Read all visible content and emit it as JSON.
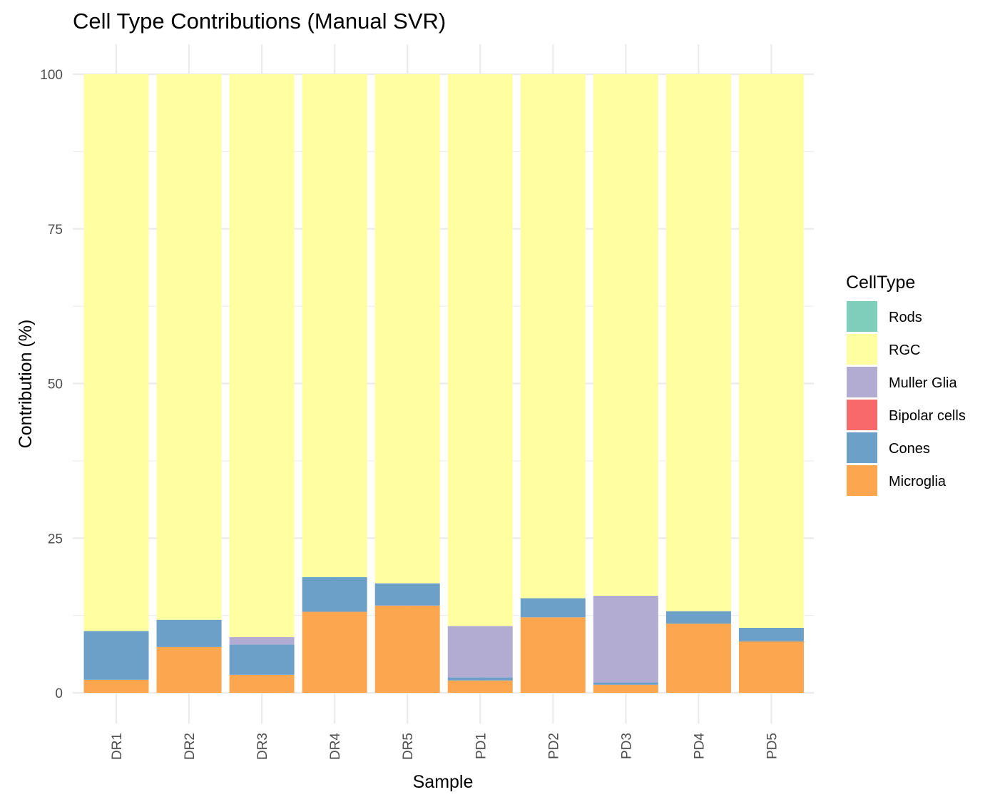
{
  "chart_data": {
    "type": "bar",
    "stacked": true,
    "title": "Cell Type Contributions (Manual SVR)",
    "xlabel": "Sample",
    "ylabel": "Contribution (%)",
    "ylim": [
      0,
      100
    ],
    "yticks": [
      "0",
      "25",
      "50",
      "75",
      "100"
    ],
    "grid": true,
    "legend_position": "right",
    "legend_title": "CellType",
    "categories": [
      "DR1",
      "DR2",
      "DR3",
      "DR4",
      "DR5",
      "PD1",
      "PD2",
      "PD3",
      "PD4",
      "PD5"
    ],
    "stack_order_bottom_to_top": [
      "Microglia",
      "Cones",
      "Bipolar cells",
      "Muller Glia",
      "RGC",
      "Rods"
    ],
    "series": [
      {
        "name": "Rods",
        "color": "#7fcdbb",
        "values": [
          0,
          0,
          0,
          0,
          0,
          0,
          0,
          0,
          0,
          0
        ]
      },
      {
        "name": "RGC",
        "color": "#ffffa1",
        "values": [
          90.0,
          88.2,
          91.0,
          81.3,
          82.3,
          89.2,
          84.7,
          84.3,
          86.8,
          89.5
        ]
      },
      {
        "name": "Muller Glia",
        "color": "#b2abd2",
        "values": [
          0,
          0,
          1.2,
          0,
          0,
          8.3,
          0,
          14.0,
          0,
          0
        ]
      },
      {
        "name": "Bipolar cells",
        "color": "#f8696b",
        "values": [
          0,
          0,
          0,
          0,
          0,
          0,
          0,
          0,
          0,
          0
        ]
      },
      {
        "name": "Cones",
        "color": "#6ca0c8",
        "values": [
          7.9,
          4.4,
          4.9,
          5.6,
          3.6,
          0.5,
          3.1,
          0.4,
          2.0,
          2.2
        ]
      },
      {
        "name": "Microglia",
        "color": "#fca64f",
        "values": [
          2.1,
          7.4,
          2.9,
          13.1,
          14.1,
          2.0,
          12.2,
          1.3,
          11.2,
          8.3
        ]
      }
    ]
  }
}
